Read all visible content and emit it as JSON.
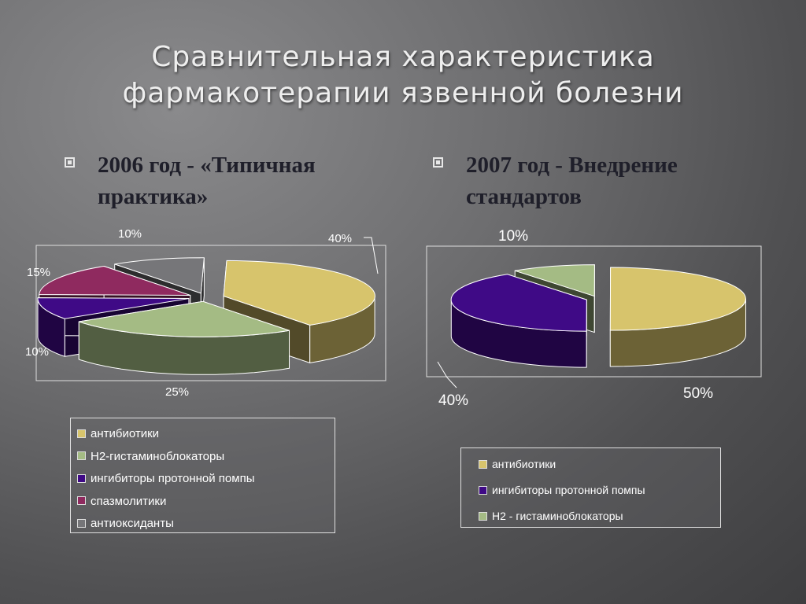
{
  "slide": {
    "title_line1": "Сравнительная характеристика",
    "title_line2": "фармакотерапии язвенной болезни",
    "bullet_left_line1": "2006 год - «Типичная",
    "bullet_left_line2": "практика»",
    "bullet_right_line1": "2007 год  - Внедрение",
    "bullet_right_line2": "стандартов"
  },
  "colors": {
    "antibiotics": "#d7c46c",
    "h2": "#a4bb84",
    "ppi": "#3f0a86",
    "spasmolytics": "#8f2a5f",
    "antioxidants": "#767679"
  },
  "chart_data": [
    {
      "type": "pie",
      "title": "",
      "slices": [
        {
          "label": "антибиотики",
          "value": 40,
          "data_label": "40%",
          "color": "#d7c46c"
        },
        {
          "label": "Н2-гистаминоблокаторы",
          "value": 25,
          "data_label": "25%",
          "color": "#a4bb84"
        },
        {
          "label": "ингибиторы протонной помпы",
          "value": 10,
          "data_label": "10%",
          "color": "#3f0a86"
        },
        {
          "label": "спазмолитики",
          "value": 15,
          "data_label": "15%",
          "color": "#8f2a5f"
        },
        {
          "label": "антиоксиданты",
          "value": 10,
          "data_label": "10%",
          "color": "#767679"
        }
      ],
      "legend_placement": "bottom"
    },
    {
      "type": "pie",
      "title": "",
      "slices": [
        {
          "label": "антибиотики",
          "value": 50,
          "data_label": "50%",
          "color": "#d7c46c"
        },
        {
          "label": "ингибиторы протонной помпы",
          "value": 40,
          "data_label": "40%",
          "color": "#3f0a86"
        },
        {
          "label": "Н2 - гистаминоблокаторы",
          "value": 10,
          "data_label": "10%",
          "color": "#a4bb84"
        }
      ],
      "legend_placement": "bottom"
    }
  ]
}
